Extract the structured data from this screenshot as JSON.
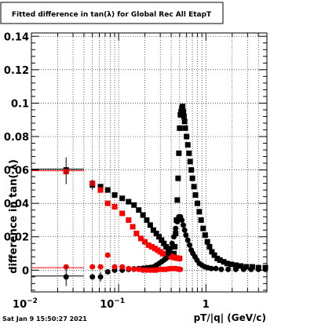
{
  "chart_data": {
    "type": "scatter",
    "title": "Fitted difference in tan(λ) for Global Rec All EtapT",
    "xlabel": "pT/|q| (GeV/c)",
    "ylabel": "difference in tan( λ)",
    "x_scale": "log",
    "xlim": [
      0.01,
      5.0
    ],
    "ylim": [
      -0.013,
      0.142
    ],
    "grid": true,
    "x_ticks": [
      {
        "value": 0.01,
        "label": "10",
        "exp": "−2"
      },
      {
        "value": 0.1,
        "label": "10",
        "exp": "−1"
      },
      {
        "value": 1,
        "label": "1",
        "exp": ""
      }
    ],
    "y_ticks": [
      {
        "value": 0,
        "label": "0"
      },
      {
        "value": 0.02,
        "label": "0.02"
      },
      {
        "value": 0.04,
        "label": "0.04"
      },
      {
        "value": 0.06,
        "label": "0.06"
      },
      {
        "value": 0.08,
        "label": "0.08"
      },
      {
        "value": 0.1,
        "label": "0.1"
      },
      {
        "value": 0.12,
        "label": "0.12"
      },
      {
        "value": 0.14,
        "label": "0.14"
      }
    ],
    "series": [
      {
        "color": "#000000",
        "marker": "square",
        "points": [
          [
            0.025,
            0.06
          ],
          [
            0.05,
            0.051
          ],
          [
            0.062,
            0.05
          ],
          [
            0.075,
            0.048
          ],
          [
            0.09,
            0.045
          ],
          [
            0.11,
            0.043
          ],
          [
            0.13,
            0.041
          ],
          [
            0.15,
            0.039
          ],
          [
            0.17,
            0.036
          ],
          [
            0.19,
            0.033
          ],
          [
            0.21,
            0.03
          ],
          [
            0.23,
            0.027
          ],
          [
            0.25,
            0.024
          ],
          [
            0.27,
            0.022
          ],
          [
            0.29,
            0.02
          ],
          [
            0.31,
            0.018
          ],
          [
            0.33,
            0.016
          ],
          [
            0.35,
            0.014
          ],
          [
            0.37,
            0.012
          ],
          [
            0.39,
            0.01
          ],
          [
            0.41,
            0.009
          ],
          [
            0.43,
            0.01
          ],
          [
            0.44,
            0.014
          ],
          [
            0.45,
            0.022
          ],
          [
            0.46,
            0.03
          ],
          [
            0.47,
            0.042
          ],
          [
            0.48,
            0.055
          ],
          [
            0.49,
            0.07
          ],
          [
            0.5,
            0.085
          ],
          [
            0.51,
            0.093
          ],
          [
            0.52,
            0.095
          ],
          [
            0.53,
            0.097
          ],
          [
            0.54,
            0.098
          ],
          [
            0.55,
            0.095
          ],
          [
            0.56,
            0.092
          ],
          [
            0.57,
            0.089
          ],
          [
            0.58,
            0.085
          ],
          [
            0.6,
            0.08
          ],
          [
            0.62,
            0.075
          ],
          [
            0.64,
            0.07
          ],
          [
            0.66,
            0.065
          ],
          [
            0.68,
            0.06
          ],
          [
            0.7,
            0.055
          ],
          [
            0.73,
            0.05
          ],
          [
            0.76,
            0.045
          ],
          [
            0.8,
            0.04
          ],
          [
            0.84,
            0.035
          ],
          [
            0.88,
            0.03
          ],
          [
            0.93,
            0.025
          ],
          [
            0.98,
            0.021
          ],
          [
            1.04,
            0.017
          ],
          [
            1.1,
            0.014
          ],
          [
            1.17,
            0.011
          ],
          [
            1.25,
            0.009
          ],
          [
            1.35,
            0.007
          ],
          [
            1.45,
            0.006
          ],
          [
            1.6,
            0.005
          ],
          [
            1.75,
            0.004
          ],
          [
            1.95,
            0.0035
          ],
          [
            2.2,
            0.003
          ],
          [
            2.5,
            0.0025
          ],
          [
            2.9,
            0.002
          ],
          [
            3.4,
            0.002
          ],
          [
            4.0,
            0.0015
          ],
          [
            4.8,
            0.0015
          ]
        ]
      },
      {
        "color": "#ff0000",
        "marker": "square",
        "points": [
          [
            0.025,
            0.059
          ],
          [
            0.05,
            0.052
          ],
          [
            0.062,
            0.048
          ],
          [
            0.075,
            0.04
          ],
          [
            0.09,
            0.038
          ],
          [
            0.11,
            0.034
          ],
          [
            0.13,
            0.03
          ],
          [
            0.145,
            0.026
          ],
          [
            0.16,
            0.022
          ],
          [
            0.18,
            0.019
          ],
          [
            0.2,
            0.017
          ],
          [
            0.22,
            0.015
          ],
          [
            0.24,
            0.014
          ],
          [
            0.26,
            0.013
          ],
          [
            0.28,
            0.012
          ],
          [
            0.3,
            0.011
          ],
          [
            0.32,
            0.01
          ],
          [
            0.34,
            0.0095
          ],
          [
            0.36,
            0.009
          ],
          [
            0.38,
            0.0085
          ],
          [
            0.4,
            0.008
          ],
          [
            0.42,
            0.0078
          ],
          [
            0.44,
            0.0075
          ],
          [
            0.46,
            0.0073
          ],
          [
            0.48,
            0.0071
          ],
          [
            0.5,
            0.007
          ]
        ]
      },
      {
        "color": "#000000",
        "marker": "circle",
        "points": [
          [
            0.025,
            -0.004
          ],
          [
            0.05,
            -0.004
          ],
          [
            0.062,
            -0.004
          ],
          [
            0.075,
            -0.001
          ],
          [
            0.09,
            0.0
          ],
          [
            0.11,
            0.0
          ],
          [
            0.13,
            0.0005
          ],
          [
            0.15,
            0.0008
          ],
          [
            0.17,
            0.001
          ],
          [
            0.19,
            0.0012
          ],
          [
            0.21,
            0.0015
          ],
          [
            0.23,
            0.0017
          ],
          [
            0.25,
            0.002
          ],
          [
            0.27,
            0.003
          ],
          [
            0.29,
            0.004
          ],
          [
            0.31,
            0.005
          ],
          [
            0.33,
            0.006
          ],
          [
            0.35,
            0.007
          ],
          [
            0.37,
            0.01
          ],
          [
            0.39,
            0.013
          ],
          [
            0.41,
            0.016
          ],
          [
            0.43,
            0.02
          ],
          [
            0.45,
            0.025
          ],
          [
            0.47,
            0.029
          ],
          [
            0.49,
            0.032
          ],
          [
            0.51,
            0.032
          ],
          [
            0.53,
            0.03
          ],
          [
            0.55,
            0.027
          ],
          [
            0.57,
            0.024
          ],
          [
            0.59,
            0.021
          ],
          [
            0.62,
            0.018
          ],
          [
            0.65,
            0.015
          ],
          [
            0.68,
            0.012
          ],
          [
            0.71,
            0.01
          ],
          [
            0.75,
            0.008
          ],
          [
            0.79,
            0.006
          ],
          [
            0.84,
            0.004
          ],
          [
            0.9,
            0.003
          ],
          [
            0.97,
            0.002
          ],
          [
            1.05,
            0.0015
          ],
          [
            1.15,
            0.001
          ],
          [
            1.3,
            0.001
          ],
          [
            1.5,
            0.0005
          ],
          [
            1.8,
            0.0005
          ],
          [
            2.2,
            0.0005
          ],
          [
            2.7,
            0.0005
          ],
          [
            3.3,
            0.0005
          ],
          [
            4.0,
            0.0005
          ],
          [
            4.8,
            0.0005
          ]
        ]
      },
      {
        "color": "#ff0000",
        "marker": "circle",
        "points": [
          [
            0.025,
            0.002
          ],
          [
            0.05,
            0.002
          ],
          [
            0.062,
            0.002
          ],
          [
            0.075,
            0.009
          ],
          [
            0.09,
            0.002
          ],
          [
            0.11,
            0.002
          ],
          [
            0.13,
            0.001
          ],
          [
            0.15,
            0.0005
          ],
          [
            0.17,
            0.0005
          ],
          [
            0.19,
            0.0
          ],
          [
            0.21,
            0.0
          ],
          [
            0.23,
            0.0
          ],
          [
            0.25,
            0.0
          ],
          [
            0.27,
            0.0
          ],
          [
            0.29,
            0.0005
          ],
          [
            0.31,
            0.0005
          ],
          [
            0.33,
            0.0005
          ],
          [
            0.35,
            0.0005
          ],
          [
            0.37,
            0.0008
          ],
          [
            0.39,
            0.001
          ],
          [
            0.41,
            0.001
          ],
          [
            0.43,
            0.001
          ],
          [
            0.45,
            0.001
          ],
          [
            0.47,
            0.0008
          ],
          [
            0.49,
            0.0005
          ],
          [
            0.51,
            0.0005
          ]
        ]
      }
    ],
    "reference_lines": [
      {
        "color": "#ff0000",
        "y": 0.0595,
        "x_range": [
          0.01,
          0.04
        ]
      },
      {
        "color": "#000000",
        "y": 0.0605,
        "x_range": [
          0.01,
          0.04
        ]
      },
      {
        "color": "#ff0000",
        "y": 0.0015,
        "x_range": [
          0.01,
          0.04
        ]
      },
      {
        "color": "#000000",
        "y": -0.0035,
        "x_range": [
          0.01,
          0.04
        ]
      }
    ]
  },
  "footer": {
    "timestamp": "Sat Jan  9 15:50:27 2021"
  }
}
